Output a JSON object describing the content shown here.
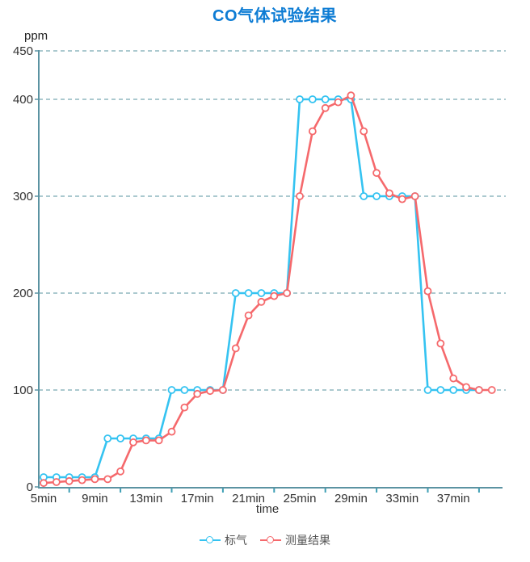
{
  "axis": {
    "line_color": "#5b93a2",
    "grid_color": "#8fb7bf",
    "tick_color": "#3d9fb5",
    "label_color": "#333333"
  },
  "chart_data": {
    "type": "line",
    "title": "CO气体试验结果",
    "title_color": "#0d7cd4",
    "ylabel": "ppm",
    "xlabel": "time",
    "ylim": [
      0,
      450
    ],
    "y_ticks": [
      0,
      100,
      200,
      300,
      400,
      450
    ],
    "gridlines_at": [
      100,
      200,
      300,
      400,
      450
    ],
    "grid_style": "dashed-horizontal",
    "legend_position": "bottom-center",
    "x_unit": "min",
    "x_tick_labels": [
      {
        "t": 5,
        "label": "5min"
      },
      {
        "t": 9,
        "label": "9min"
      },
      {
        "t": 13,
        "label": "13min"
      },
      {
        "t": 17,
        "label": "17min"
      },
      {
        "t": 21,
        "label": "21min"
      },
      {
        "t": 25,
        "label": "25min"
      },
      {
        "t": 29,
        "label": "29min"
      },
      {
        "t": 33,
        "label": "33min"
      },
      {
        "t": 37,
        "label": "37min"
      }
    ],
    "x_minor_ticks": [
      7,
      11,
      15,
      19,
      23,
      27,
      31,
      35,
      39
    ],
    "series": [
      {
        "name": "标气",
        "color": "#35c3f1",
        "x": [
          5,
          6,
          7,
          8,
          9,
          10,
          11,
          12,
          13,
          14,
          15,
          16,
          17,
          18,
          19,
          20,
          21,
          22,
          23,
          24,
          25,
          26,
          27,
          28,
          29,
          30,
          31,
          32,
          33,
          34,
          35,
          36,
          37,
          38,
          39
        ],
        "values": [
          10,
          10,
          10,
          10,
          10,
          50,
          50,
          50,
          50,
          50,
          100,
          100,
          100,
          100,
          100,
          200,
          200,
          200,
          200,
          200,
          400,
          400,
          400,
          400,
          400,
          300,
          300,
          300,
          300,
          300,
          100,
          100,
          100,
          100,
          100
        ]
      },
      {
        "name": "测量结果",
        "color": "#f5696c",
        "x": [
          5,
          6,
          7,
          8,
          9,
          10,
          11,
          12,
          13,
          14,
          15,
          16,
          17,
          18,
          19,
          20,
          21,
          22,
          23,
          24,
          25,
          26,
          27,
          28,
          29,
          30,
          31,
          32,
          33,
          34,
          35,
          36,
          37,
          38,
          39,
          40
        ],
        "values": [
          4,
          5,
          6,
          7,
          8,
          8,
          16,
          46,
          48,
          48,
          57,
          82,
          96,
          99,
          100,
          143,
          177,
          191,
          197,
          200,
          300,
          367,
          391,
          397,
          404,
          367,
          324,
          303,
          297,
          300,
          202,
          148,
          112,
          103,
          100,
          100
        ]
      }
    ]
  }
}
